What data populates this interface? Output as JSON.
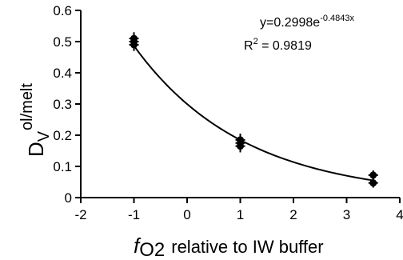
{
  "chart_data": {
    "type": "scatter",
    "x": [
      -1,
      -1,
      -1,
      1,
      1,
      1,
      3.5,
      3.5
    ],
    "y": [
      0.51,
      0.5,
      0.49,
      0.185,
      0.175,
      0.165,
      0.072,
      0.047
    ],
    "error_y": [
      0.02,
      0.02,
      0.02,
      0.02,
      0.02,
      0.02,
      0.015,
      0.015
    ],
    "xlim": [
      -2,
      4
    ],
    "ylim": [
      0,
      0.6
    ],
    "x_ticks": [
      "-2",
      "-1",
      "0",
      "1",
      "2",
      "3",
      "4"
    ],
    "y_ticks": [
      "0",
      "0.1",
      "0.2",
      "0.3",
      "0.4",
      "0.5",
      "0.6"
    ],
    "xlabel": {
      "f": "f",
      "o2": "O2",
      "rest": "relative to IW buffer"
    },
    "ylabel": {
      "main": "D",
      "sub": "V",
      "sup": "ol/melt"
    },
    "fit": {
      "type": "exponential",
      "a": 0.2998,
      "b": -0.4843,
      "x_start": -1,
      "x_end": 3.5,
      "equation_base": "y=0.2998e",
      "equation_exp": "-0.4843x",
      "r2_label": "R",
      "r2_sup": "2",
      "r2_value": " = 0.9819"
    },
    "grid": false,
    "marker_color": "#000000",
    "line_color": "#000000"
  }
}
